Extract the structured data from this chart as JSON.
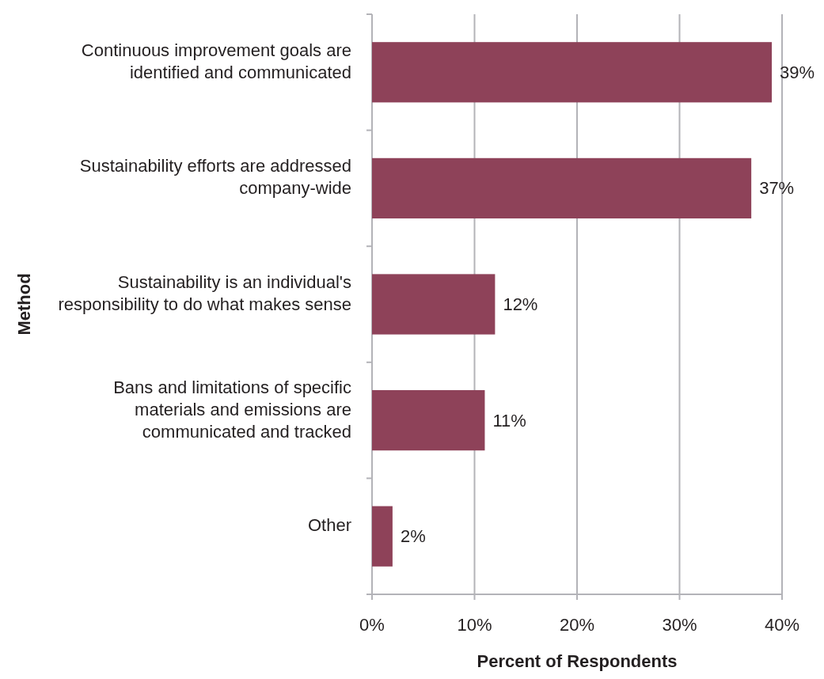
{
  "chart_data": {
    "type": "bar",
    "orientation": "horizontal",
    "xlabel": "Percent of Respondents",
    "ylabel": "Method",
    "categories": [
      "Continuous improvement goals are identified and communicated",
      "Sustainability efforts are addressed company-wide",
      "Sustainability is an individual's responsibility to do what makes sense",
      "Bans and limitations of specific materials and emissions are communicated and tracked",
      "Other"
    ],
    "values": [
      39,
      37,
      12,
      11,
      2
    ],
    "value_labels": [
      "39%",
      "37%",
      "12%",
      "11%",
      "2%"
    ],
    "color": "#8e4259",
    "xlim": [
      0,
      40
    ],
    "xticks": [
      {
        "value": 0,
        "label": "0%"
      },
      {
        "value": 10,
        "label": "10%"
      },
      {
        "value": 20,
        "label": "20%"
      },
      {
        "value": 30,
        "label": "30%"
      },
      {
        "value": 40,
        "label": "40%"
      }
    ],
    "grid": "x"
  }
}
